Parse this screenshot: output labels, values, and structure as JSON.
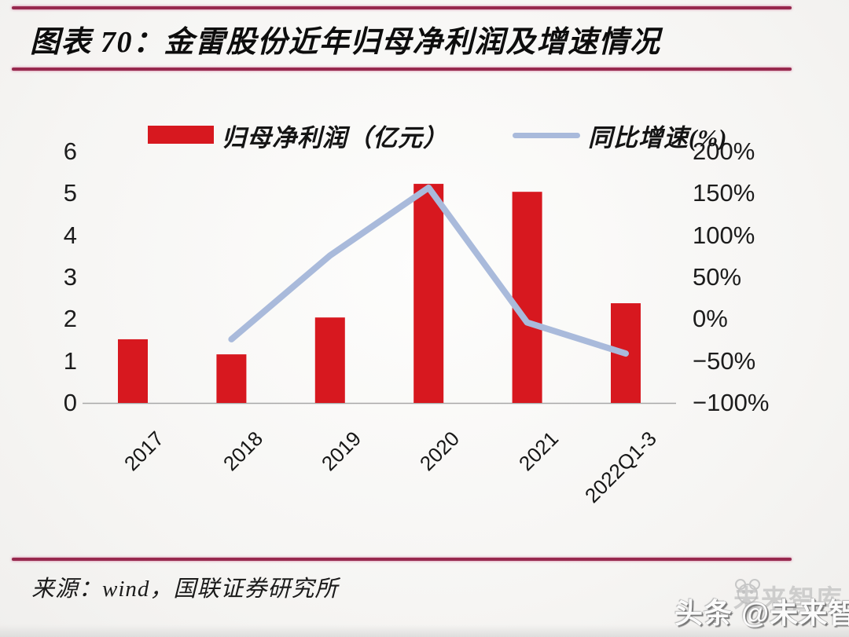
{
  "header": {
    "title": "图表 70：金雷股份近年归母净利润及增速情况"
  },
  "legend": [
    {
      "label": "归母净利润（亿元）",
      "type": "bar",
      "color": "#d7181f"
    },
    {
      "label": "同比增速(%)",
      "type": "line",
      "color": "#a9badb"
    }
  ],
  "chart_data": {
    "type": "bar+line combo",
    "categories": [
      "2017",
      "2018",
      "2019",
      "2020",
      "2021",
      "2022Q1-3"
    ],
    "series": [
      {
        "name": "归母净利润（亿元）",
        "type": "bar",
        "axis": "left",
        "color": "#d7181f",
        "values": [
          1.52,
          1.16,
          2.04,
          5.23,
          5.04,
          2.38
        ]
      },
      {
        "name": "同比增速(%)",
        "type": "line",
        "axis": "right",
        "color": "#a9badb",
        "values": [
          null,
          -24,
          76,
          157,
          -4,
          -41
        ]
      }
    ],
    "left_axis": {
      "min": 0,
      "max": 6,
      "ticks_top_to_bottom": [
        "6",
        "5",
        "4",
        "3",
        "2",
        "1",
        "0"
      ]
    },
    "right_axis": {
      "min": -100,
      "max": 200,
      "unit": "%",
      "ticks_top_to_bottom": [
        "200%",
        "150%",
        "100%",
        "50%",
        "0%",
        "−50%",
        "−100%"
      ]
    },
    "grid": false,
    "legend_position": "top"
  },
  "footer": {
    "source": "来源：wind，国联证券研究所"
  },
  "watermark": {
    "prefix": "头条 ",
    "handle": "@未来智库",
    "ghost": "未来智库"
  },
  "colors": {
    "bar": "#d7181f",
    "line": "#a9badb",
    "rule": "#97294e",
    "baseline": "#a8a8a8",
    "background": "#f6f5f3",
    "text": "#151515"
  }
}
